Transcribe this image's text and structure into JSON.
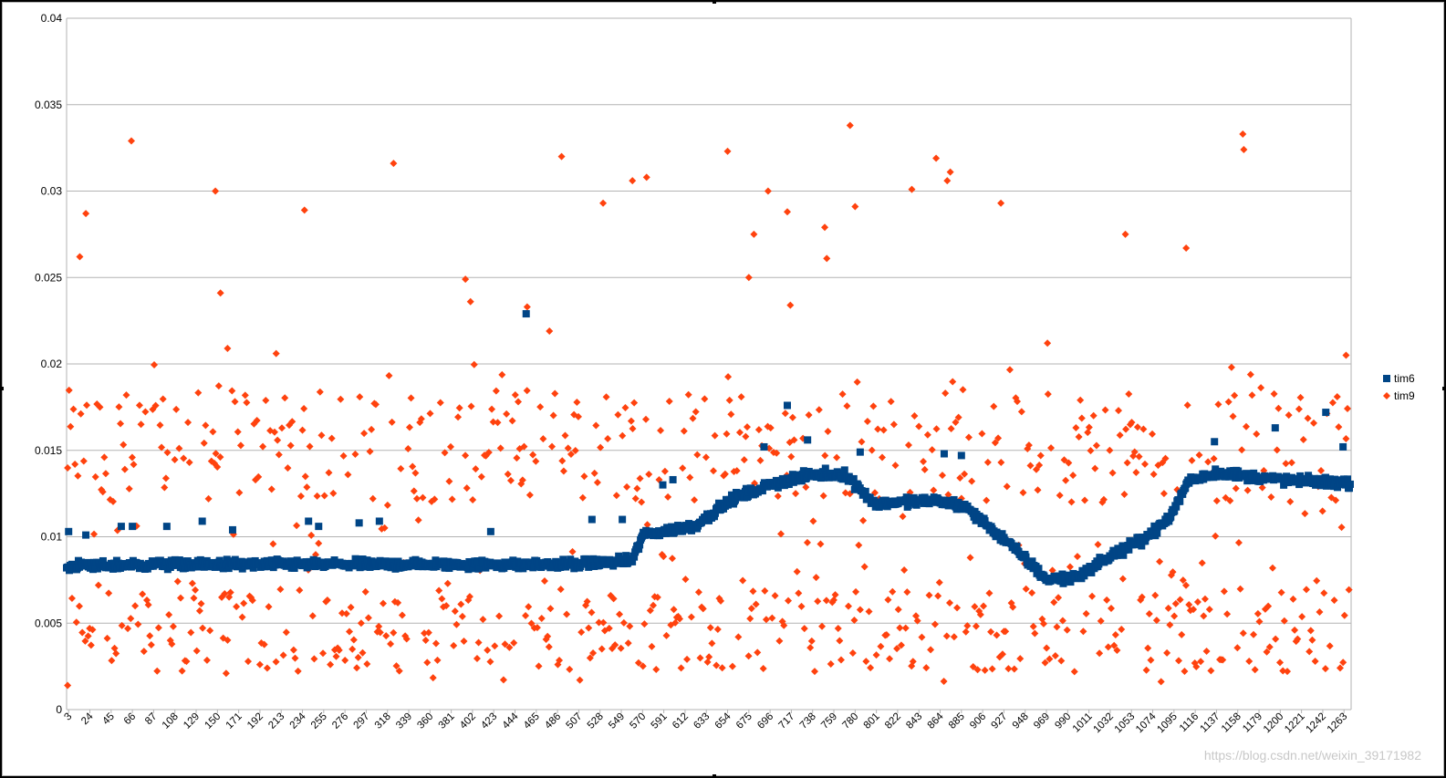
{
  "chart_data": {
    "type": "scatter",
    "title": "",
    "xlabel": "",
    "ylabel": "",
    "ylim": [
      0,
      0.04
    ],
    "xlim": [
      1,
      1270
    ],
    "y_ticks": [
      "0",
      "0.005",
      "0.01",
      "0.015",
      "0.02",
      "0.025",
      "0.03",
      "0.035",
      "0.04"
    ],
    "y_tick_values": [
      0,
      0.005,
      0.01,
      0.015,
      0.02,
      0.025,
      0.03,
      0.035,
      0.04
    ],
    "x_tick_start": 3,
    "x_tick_step": 21,
    "x_tick_count": 61,
    "grid": true,
    "legend_position": "right",
    "series": [
      {
        "name": "tim6",
        "color": "#004586",
        "marker": "square",
        "baseline_profile": [
          [
            1,
            0.0083
          ],
          [
            100,
            0.0084
          ],
          [
            200,
            0.0084
          ],
          [
            300,
            0.0084
          ],
          [
            400,
            0.0084
          ],
          [
            500,
            0.0084
          ],
          [
            560,
            0.0086
          ],
          [
            570,
            0.0101
          ],
          [
            620,
            0.0106
          ],
          [
            660,
            0.0122
          ],
          [
            700,
            0.0131
          ],
          [
            740,
            0.0136
          ],
          [
            770,
            0.0136
          ],
          [
            800,
            0.0119
          ],
          [
            860,
            0.0121
          ],
          [
            890,
            0.0117
          ],
          [
            930,
            0.0097
          ],
          [
            970,
            0.0075
          ],
          [
            1000,
            0.0077
          ],
          [
            1030,
            0.0088
          ],
          [
            1060,
            0.0097
          ],
          [
            1090,
            0.011
          ],
          [
            1110,
            0.0133
          ],
          [
            1140,
            0.0137
          ],
          [
            1200,
            0.0133
          ],
          [
            1270,
            0.0131
          ]
        ],
        "noise": 0.0004,
        "outliers": [
          [
            3,
            0.0103
          ],
          [
            20,
            0.0101
          ],
          [
            55,
            0.0106
          ],
          [
            66,
            0.0106
          ],
          [
            100,
            0.0106
          ],
          [
            135,
            0.0109
          ],
          [
            165,
            0.0104
          ],
          [
            240,
            0.0109
          ],
          [
            250,
            0.0106
          ],
          [
            290,
            0.0108
          ],
          [
            310,
            0.0109
          ],
          [
            420,
            0.0103
          ],
          [
            455,
            0.0229
          ],
          [
            520,
            0.011
          ],
          [
            550,
            0.011
          ],
          [
            590,
            0.013
          ],
          [
            600,
            0.0133
          ],
          [
            690,
            0.0152
          ],
          [
            713,
            0.0176
          ],
          [
            733,
            0.0156
          ],
          [
            785,
            0.0149
          ],
          [
            868,
            0.0148
          ],
          [
            885,
            0.0147
          ],
          [
            1135,
            0.0155
          ],
          [
            1195,
            0.0163
          ],
          [
            1245,
            0.0172
          ],
          [
            1262,
            0.0152
          ]
        ]
      },
      {
        "name": "tim9",
        "color": "#ff420e",
        "marker": "diamond",
        "spread_range": [
          0.0015,
          0.02
        ],
        "outliers": [
          [
            2,
            0.0014
          ],
          [
            14,
            0.0262
          ],
          [
            20,
            0.0287
          ],
          [
            65,
            0.0329
          ],
          [
            148,
            0.03
          ],
          [
            153,
            0.0241
          ],
          [
            160,
            0.0209
          ],
          [
            208,
            0.0206
          ],
          [
            236,
            0.0289
          ],
          [
            324,
            0.0316
          ],
          [
            395,
            0.0249
          ],
          [
            400,
            0.0236
          ],
          [
            456,
            0.0233
          ],
          [
            478,
            0.0219
          ],
          [
            490,
            0.032
          ],
          [
            531,
            0.0293
          ],
          [
            560,
            0.0306
          ],
          [
            574,
            0.0308
          ],
          [
            654,
            0.0323
          ],
          [
            675,
            0.025
          ],
          [
            680,
            0.0275
          ],
          [
            694,
            0.03
          ],
          [
            713,
            0.0288
          ],
          [
            716,
            0.0234
          ],
          [
            750,
            0.0279
          ],
          [
            752,
            0.0261
          ],
          [
            775,
            0.0338
          ],
          [
            780,
            0.0291
          ],
          [
            836,
            0.0301
          ],
          [
            860,
            0.0319
          ],
          [
            871,
            0.0306
          ],
          [
            874,
            0.0311
          ],
          [
            924,
            0.0293
          ],
          [
            970,
            0.0212
          ],
          [
            1047,
            0.0275
          ],
          [
            1107,
            0.0267
          ],
          [
            1163,
            0.0333
          ],
          [
            1164,
            0.0324
          ],
          [
            1265,
            0.0205
          ]
        ]
      }
    ],
    "watermark": "https://blog.csdn.net/weixin_39171982"
  }
}
